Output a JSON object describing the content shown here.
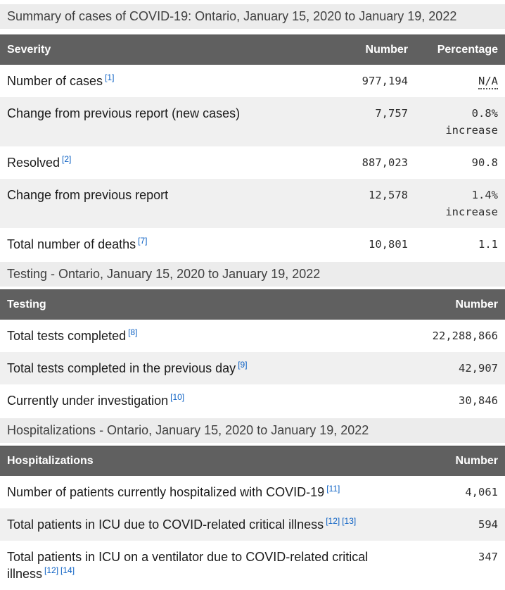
{
  "colors": {
    "header_bg": "#606060",
    "caption_bg": "#ececec",
    "stripe_bg": "#f0f0f0",
    "link_blue": "#0e62c4",
    "text": "#1b1b1b"
  },
  "sections": {
    "severity": {
      "caption": "Summary of cases of COVID-19: Ontario, January 15, 2020 to January 19, 2022",
      "headers": {
        "label": "Severity",
        "number": "Number",
        "percentage": "Percentage"
      },
      "rows": [
        {
          "label": "Number of cases",
          "refs": [
            "[1]"
          ],
          "number": "977,194",
          "percentage": "N/A"
        },
        {
          "label": "Change from previous report (new cases)",
          "number": "7,757",
          "percentage": "0.8%",
          "percentage_note": "increase"
        },
        {
          "label": "Resolved",
          "refs": [
            "[2]"
          ],
          "number": "887,023",
          "percentage": "90.8"
        },
        {
          "label": "Change from previous report",
          "number": "12,578",
          "percentage": "1.4%",
          "percentage_note": "increase"
        },
        {
          "label": "Total number of deaths",
          "refs": [
            "[7]"
          ],
          "number": "10,801",
          "percentage": "1.1"
        }
      ]
    },
    "testing": {
      "caption": "Testing - Ontario, January 15, 2020 to January 19, 2022",
      "headers": {
        "label": "Testing",
        "number": "Number"
      },
      "rows": [
        {
          "label": "Total tests completed",
          "refs": [
            "[8]"
          ],
          "number": "22,288,866"
        },
        {
          "label": "Total tests completed in the previous day",
          "refs": [
            "[9]"
          ],
          "number": "42,907"
        },
        {
          "label": "Currently under investigation",
          "refs": [
            "[10]"
          ],
          "number": "30,846"
        }
      ]
    },
    "hospitalizations": {
      "caption": "Hospitalizations - Ontario, January 15, 2020 to January 19, 2022",
      "headers": {
        "label": "Hospitalizations",
        "number": "Number"
      },
      "rows": [
        {
          "label": "Number of patients currently hospitalized with COVID-19",
          "refs": [
            "[11]"
          ],
          "number": "4,061"
        },
        {
          "label": "Total patients in ICU due to COVID-related critical illness",
          "refs": [
            "[12]",
            "[13]"
          ],
          "number": "594"
        },
        {
          "label": "Total patients in ICU on a ventilator due to COVID-related critical illness",
          "refs": [
            "[12]",
            "[14]"
          ],
          "number": "347"
        }
      ]
    }
  }
}
